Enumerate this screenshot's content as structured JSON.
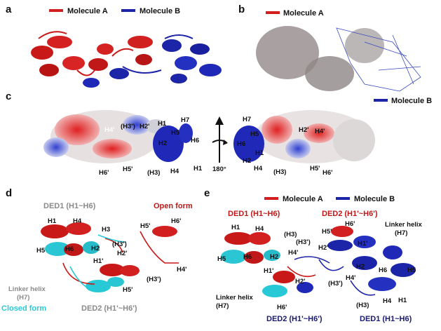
{
  "panels": {
    "a": {
      "label": "a",
      "legend": [
        {
          "text": "Molecule A",
          "color": "#d21e1e"
        },
        {
          "text": "Molecule B",
          "color": "#1c24a8"
        }
      ]
    },
    "b": {
      "label": "b",
      "legend_a": {
        "text": "Molecule A",
        "color": "#d21e1e"
      },
      "legend_b": {
        "text": "Molecule B",
        "color": "#1c24a8"
      }
    },
    "c": {
      "label": "c",
      "left_labels": [
        "H4'",
        "(H3')",
        "H2'",
        "H1",
        "H7",
        "H5",
        "H2",
        "H6",
        "H6'",
        "H5'",
        "(H3)",
        "H4",
        "H1"
      ],
      "right_labels": [
        "H7",
        "H5",
        "H6",
        "H1",
        "H2",
        "H4",
        "(H3)",
        "H2'",
        "H4'",
        "H5'",
        "H6'"
      ],
      "rotation": "180°"
    },
    "d": {
      "label": "d",
      "ded1": "DED1 (H1~H6)",
      "open_form": "Open form",
      "closed_form": "Closed form",
      "ded2": "DED2 (H1'~H6')",
      "linker_line1": "Linker helix",
      "linker_line2": "(H7)",
      "helices": [
        "H1",
        "H4",
        "H3",
        "H5",
        "H6",
        "H2",
        "H1'",
        "(H3')",
        "H2'",
        "H5'",
        "H4'",
        "(H3')",
        "H6'",
        "H5'"
      ]
    },
    "e": {
      "label": "e",
      "legend": [
        {
          "text": "Molecule A",
          "color": "#d21e1e"
        },
        {
          "text": "Molecule B",
          "color": "#1c24a8"
        }
      ],
      "ded1_a": "DED1 (H1~H6)",
      "ded2_a": "DED2 (H1'~H6')",
      "linker_b_line1": "Linker helix",
      "linker_b_line2": "(H7)",
      "linker_a_line1": "Linker helix",
      "linker_a_line2": "(H7)",
      "ded2_b": "DED2 (H1'~H6')",
      "ded1_b": "DED1 (H1~H6)",
      "helices": [
        "H1",
        "H4",
        "(H3)",
        "H5",
        "H6",
        "H2",
        "H1'",
        "(H3')",
        "H4'",
        "H2'",
        "H5'",
        "H6'",
        "H1'",
        "H2'",
        "H2",
        "H6",
        "H5",
        "(H3')",
        "H4'",
        "H4",
        "H1",
        "(H3)",
        "H6'"
      ]
    }
  },
  "colors": {
    "red": "#d21e1e",
    "blue": "#1c24a8",
    "cyan": "#27c9d6",
    "gray_text": "#8a8a8a",
    "dark_navy": "#1a1a6e",
    "red_text": "#c01818"
  }
}
